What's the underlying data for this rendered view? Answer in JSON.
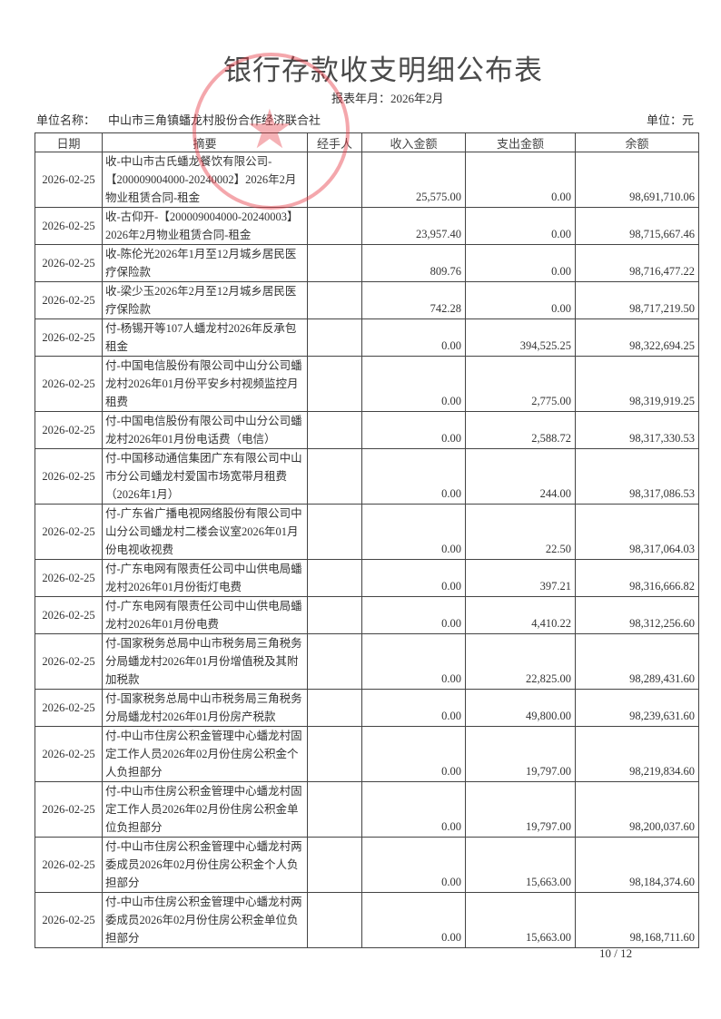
{
  "header": {
    "title": "银行存款收支明细公布表",
    "period": "报表年月：2026年2月",
    "unit_label": "单位名称：",
    "unit_name": "中山市三角镇蟠龙村股份合作经济联合社",
    "currency": "单位：元",
    "stamp_text": "中山市三角镇蟠龙村股份合作经济联合社"
  },
  "columns": [
    "日期",
    "摘要",
    "经手人",
    "收入金额",
    "支出金额",
    "余额"
  ],
  "rows": [
    {
      "date": "2026-02-25",
      "summary": "收-中山市古氏蟠龙餐饮有限公司-【200009004000-20240002】2026年2月物业租赁合同-租金",
      "handler": "",
      "income": "25,575.00",
      "expense": "0.00",
      "balance": "98,691,710.06",
      "h": 61
    },
    {
      "date": "2026-02-25",
      "summary": "收-古仰开-【200009004000-20240003】2026年2月物业租赁合同-租金",
      "handler": "",
      "income": "23,957.40",
      "expense": "0.00",
      "balance": "98,715,667.46",
      "h": 40
    },
    {
      "date": "2026-02-25",
      "summary": "收-陈伦光2026年1月至12月城乡居民医疗保险款",
      "handler": "",
      "income": "809.76",
      "expense": "0.00",
      "balance": "98,716,477.22",
      "h": 40
    },
    {
      "date": "2026-02-25",
      "summary": "收-梁少玉2026年2月至12月城乡居民医疗保险款",
      "handler": "",
      "income": "742.28",
      "expense": "0.00",
      "balance": "98,717,219.50",
      "h": 41
    },
    {
      "date": "2026-02-25",
      "summary": "付-杨锡开等107人蟠龙村2026年反承包租金",
      "handler": "",
      "income": "0.00",
      "expense": "394,525.25",
      "balance": "98,322,694.25",
      "h": 40
    },
    {
      "date": "2026-02-25",
      "summary": "付-中国电信股份有限公司中山分公司蟠龙村2026年01月份平安乡村视频监控月租费",
      "handler": "",
      "income": "0.00",
      "expense": "2,775.00",
      "balance": "98,319,919.25",
      "h": 58
    },
    {
      "date": "2026-02-25",
      "summary": "付-中国电信股份有限公司中山分公司蟠龙村2026年01月份电话费（电信）",
      "handler": "",
      "income": "0.00",
      "expense": "2,588.72",
      "balance": "98,317,330.53",
      "h": 39
    },
    {
      "date": "2026-02-25",
      "summary": "付-中国移动通信集团广东有限公司中山市分公司蟠龙村爱国市场宽带月租费（2026年1月）",
      "handler": "",
      "income": "0.00",
      "expense": "244.00",
      "balance": "98,317,086.53",
      "h": 61
    },
    {
      "date": "2026-02-25",
      "summary": "付-广东省广播电视网络股份有限公司中山分公司蟠龙村二楼会议室2026年01月份电视收视费",
      "handler": "",
      "income": "0.00",
      "expense": "22.50",
      "balance": "98,317,064.03",
      "h": 59
    },
    {
      "date": "2026-02-25",
      "summary": "付-广东电网有限责任公司中山供电局蟠龙村2026年01月份街灯电费",
      "handler": "",
      "income": "0.00",
      "expense": "397.21",
      "balance": "98,316,666.82",
      "h": 40
    },
    {
      "date": "2026-02-25",
      "summary": "付-广东电网有限责任公司中山供电局蟠龙村2026年01月份电费",
      "handler": "",
      "income": "0.00",
      "expense": "4,410.22",
      "balance": "98,312,256.60",
      "h": 40
    },
    {
      "date": "2026-02-25",
      "summary": "付-国家税务总局中山市税务局三角税务分局蟠龙村2026年01月份增值税及其附加税款",
      "handler": "",
      "income": "0.00",
      "expense": "22,825.00",
      "balance": "98,289,431.60",
      "h": 60
    },
    {
      "date": "2026-02-25",
      "summary": "付-国家税务总局中山市税务局三角税务分局蟠龙村2026年01月份房产税款",
      "handler": "",
      "income": "0.00",
      "expense": "49,800.00",
      "balance": "98,239,631.60",
      "h": 40
    },
    {
      "date": "2026-02-25",
      "summary": "付-中山市住房公积金管理中心蟠龙村固定工作人员2026年02月份住房公积金个人负担部分",
      "handler": "",
      "income": "0.00",
      "expense": "19,797.00",
      "balance": "98,219,834.60",
      "h": 60
    },
    {
      "date": "2026-02-25",
      "summary": "付-中山市住房公积金管理中心蟠龙村固定工作人员2026年02月份住房公积金单位负担部分",
      "handler": "",
      "income": "0.00",
      "expense": "19,797.00",
      "balance": "98,200,037.60",
      "h": 59
    },
    {
      "date": "2026-02-25",
      "summary": "付-中山市住房公积金管理中心蟠龙村两委成员2026年02月份住房公积金个人负担部分",
      "handler": "",
      "income": "0.00",
      "expense": "15,663.00",
      "balance": "98,184,374.60",
      "h": 58
    },
    {
      "date": "2026-02-25",
      "summary": "付-中山市住房公积金管理中心蟠龙村两委成员2026年02月份住房公积金单位负担部分",
      "handler": "",
      "income": "0.00",
      "expense": "15,663.00",
      "balance": "98,168,711.60",
      "h": 59
    }
  ],
  "footer": {
    "page": "10 / 12"
  }
}
